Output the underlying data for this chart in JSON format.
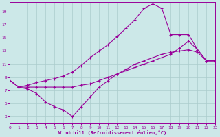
{
  "xlabel": "Windchill (Refroidissement éolien,°C)",
  "bg_color": "#cce8e8",
  "grid_color": "#aacccc",
  "line_color": "#990099",
  "xlim": [
    0,
    23
  ],
  "ylim": [
    2,
    20.5
  ],
  "xticks": [
    0,
    1,
    2,
    3,
    4,
    5,
    6,
    7,
    8,
    9,
    10,
    11,
    12,
    13,
    14,
    15,
    16,
    17,
    18,
    19,
    20,
    21,
    22,
    23
  ],
  "yticks": [
    3,
    5,
    7,
    9,
    11,
    13,
    15,
    17,
    19
  ],
  "line_upper_x": [
    0,
    1,
    2,
    3,
    4,
    5,
    6,
    7,
    8,
    9,
    10,
    11,
    12,
    13,
    14,
    15,
    16,
    17,
    18,
    19,
    20,
    21,
    22,
    23
  ],
  "line_upper_y": [
    8.5,
    7.5,
    7.8,
    8.2,
    8.5,
    8.8,
    9.2,
    9.8,
    10.8,
    12.0,
    13.0,
    14.0,
    15.2,
    16.5,
    17.8,
    19.5,
    20.2,
    19.5,
    15.5,
    15.5,
    15.5,
    13.2,
    11.5,
    11.5
  ],
  "line_middle_x": [
    0,
    1,
    2,
    3,
    4,
    5,
    6,
    7,
    8,
    9,
    10,
    11,
    12,
    13,
    14,
    15,
    16,
    17,
    18,
    19,
    20,
    21,
    22,
    23
  ],
  "line_middle_y": [
    8.5,
    7.5,
    7.5,
    7.5,
    7.5,
    7.5,
    7.5,
    7.5,
    7.8,
    8.0,
    8.5,
    9.0,
    9.5,
    10.0,
    10.5,
    11.0,
    11.5,
    12.0,
    12.5,
    13.5,
    14.5,
    13.2,
    11.5,
    11.5
  ],
  "line_lower_x": [
    0,
    1,
    2,
    3,
    4,
    5,
    6,
    7,
    8,
    9,
    10,
    11,
    12,
    13,
    14,
    15,
    16,
    17,
    18,
    19,
    20,
    21,
    22,
    23
  ],
  "line_lower_y": [
    8.5,
    7.5,
    7.2,
    6.5,
    5.2,
    4.5,
    4.0,
    3.0,
    4.5,
    6.0,
    7.5,
    8.5,
    9.5,
    10.2,
    11.0,
    11.5,
    12.0,
    12.5,
    12.8,
    13.0,
    13.2,
    12.8,
    11.5,
    11.5
  ]
}
